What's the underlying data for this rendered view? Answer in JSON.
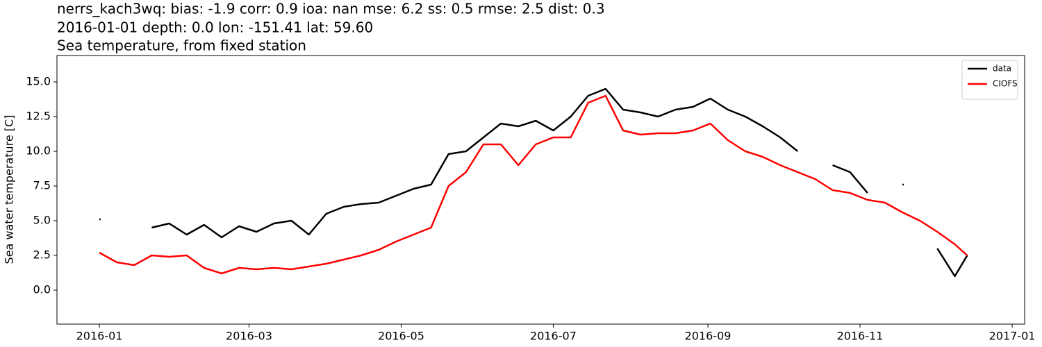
{
  "chart_data": {
    "type": "line",
    "title": [
      "nerrs_kach3wq: bias: -1.9  corr: 0.9  ioa: nan  mse: 6.2  ss: 0.5  rmse: 2.5  dist: 0.3",
      "2016-01-01 depth: 0.0 lon: -151.41 lat: 59.60",
      "Sea temperature, from fixed station"
    ],
    "ylabel": "Sea water temperature [C]",
    "x": [
      "2016-01-01",
      "2016-01-08",
      "2016-01-15",
      "2016-01-22",
      "2016-01-29",
      "2016-02-05",
      "2016-02-12",
      "2016-02-19",
      "2016-02-26",
      "2016-03-04",
      "2016-03-11",
      "2016-03-18",
      "2016-03-25",
      "2016-04-01",
      "2016-04-08",
      "2016-04-15",
      "2016-04-22",
      "2016-04-29",
      "2016-05-06",
      "2016-05-13",
      "2016-05-20",
      "2016-05-27",
      "2016-06-03",
      "2016-06-10",
      "2016-06-17",
      "2016-06-24",
      "2016-07-01",
      "2016-07-08",
      "2016-07-15",
      "2016-07-22",
      "2016-07-29",
      "2016-08-05",
      "2016-08-12",
      "2016-08-19",
      "2016-08-26",
      "2016-09-02",
      "2016-09-09",
      "2016-09-16",
      "2016-09-23",
      "2016-09-30",
      "2016-10-07",
      "2016-10-14",
      "2016-10-21",
      "2016-10-28",
      "2016-11-04",
      "2016-11-11",
      "2016-11-18",
      "2016-11-25",
      "2016-12-02",
      "2016-12-09",
      "2016-12-14"
    ],
    "series": [
      {
        "name": "data",
        "color": "#000000",
        "values": [
          5.1,
          null,
          null,
          4.5,
          4.8,
          4.0,
          4.7,
          3.8,
          4.6,
          4.2,
          4.8,
          5.0,
          4.0,
          5.5,
          6.0,
          6.2,
          6.3,
          6.8,
          7.3,
          7.6,
          9.8,
          10.0,
          11.0,
          12.0,
          11.8,
          12.2,
          11.5,
          12.5,
          14.0,
          14.5,
          13.0,
          12.8,
          12.5,
          13.0,
          13.2,
          13.8,
          13.0,
          12.5,
          11.8,
          11.0,
          10.0,
          null,
          9.0,
          8.5,
          7.0,
          null,
          7.6,
          null,
          3.0,
          1.0,
          2.5
        ]
      },
      {
        "name": "CIOFS",
        "color": "#ff0000",
        "values": [
          2.7,
          2.0,
          1.8,
          2.5,
          2.4,
          2.5,
          1.6,
          1.2,
          1.6,
          1.5,
          1.6,
          1.5,
          1.7,
          1.9,
          2.2,
          2.5,
          2.9,
          3.5,
          4.0,
          4.5,
          7.5,
          8.5,
          10.5,
          10.5,
          9.0,
          10.5,
          11.0,
          11.0,
          13.5,
          14.0,
          11.5,
          11.2,
          11.3,
          11.3,
          11.5,
          12.0,
          10.8,
          10.0,
          9.6,
          9.0,
          8.5,
          8.0,
          7.2,
          7.0,
          6.5,
          6.3,
          5.6,
          5.0,
          4.2,
          3.3,
          2.5
        ]
      }
    ],
    "xlim": [
      "2015-12-15",
      "2017-01-06"
    ],
    "xticks": [
      {
        "value": "2016-01-01",
        "label": "2016-01"
      },
      {
        "value": "2016-03-01",
        "label": "2016-03"
      },
      {
        "value": "2016-05-01",
        "label": "2016-05"
      },
      {
        "value": "2016-07-01",
        "label": "2016-07"
      },
      {
        "value": "2016-09-01",
        "label": "2016-09"
      },
      {
        "value": "2016-11-01",
        "label": "2016-11"
      },
      {
        "value": "2017-01-01",
        "label": "2017-01"
      }
    ],
    "ylim": [
      -2.45,
      16.9
    ],
    "yticks": [
      {
        "value": 0,
        "label": "0.0"
      },
      2.5,
      {
        "value": 5,
        "label": "5.0"
      },
      7.5,
      {
        "value": 10,
        "label": "10.0"
      },
      12.5,
      {
        "value": 15,
        "label": "15.0"
      }
    ],
    "legend": "upper right"
  }
}
